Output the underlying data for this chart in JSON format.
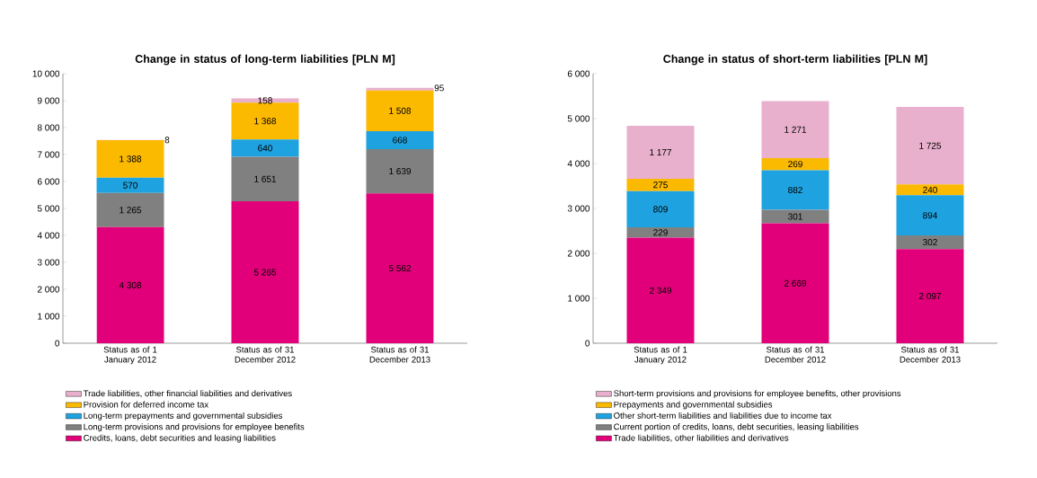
{
  "chart_data": [
    {
      "type": "bar",
      "stacked": true,
      "title": "Change in status of long-term liabilities [PLN M]",
      "categories": [
        "Status as of 1 January 2012",
        "Status as of 31 December 2012",
        "Status as of 31 December 2013"
      ],
      "ylim": [
        0,
        10000
      ],
      "yticks": [
        0,
        {
          "value": 1000,
          "label": "1 000"
        },
        {
          "value": 2000,
          "label": "2 000"
        },
        {
          "value": 3000,
          "label": "3 000"
        },
        {
          "value": 4000,
          "label": "4 000"
        },
        {
          "value": 5000,
          "label": "5 000"
        },
        {
          "value": 6000,
          "label": "6 000"
        },
        {
          "value": 7000,
          "label": "7 000"
        },
        {
          "value": 8000,
          "label": "8 000"
        },
        {
          "value": 9000,
          "label": "9 000"
        },
        {
          "value": 10000,
          "label": "10 000"
        }
      ],
      "legend": "bottom",
      "series": [
        {
          "name": "Credits, loans, debt securities and leasing liabilities",
          "color": "#e2007a",
          "values": [
            4308,
            5265,
            5562
          ],
          "value_labels": [
            "4 308",
            "5 265",
            "5 562"
          ]
        },
        {
          "name": "Long-term provisions and provisions for employee benefits",
          "color": "#808080",
          "values": [
            1265,
            1651,
            1639
          ],
          "value_labels": [
            "1 265",
            "1 651",
            "1 639"
          ]
        },
        {
          "name": "Long-term prepayments and governmental subsidies",
          "color": "#1fa3e0",
          "values": [
            570,
            640,
            668
          ],
          "value_labels": [
            "570",
            "640",
            "668"
          ]
        },
        {
          "name": "Provision for deferred income tax",
          "color": "#fbb900",
          "values": [
            1388,
            1368,
            1508
          ],
          "value_labels": [
            "1 388",
            "1 368",
            "1 508"
          ]
        },
        {
          "name": "Trade liabilities, other financial liabilities and derivatives",
          "color": "#e8b0cc",
          "values": [
            8,
            158,
            95
          ],
          "value_labels": [
            "8",
            "158",
            "95"
          ]
        }
      ]
    },
    {
      "type": "bar",
      "stacked": true,
      "title": "Change in status of short-term liabilities [PLN M]",
      "categories": [
        "Status as of 1 January 2012",
        "Status as of 31 December 2012",
        "Status as of 31 December 2013"
      ],
      "ylim": [
        0,
        6000
      ],
      "yticks": [
        0,
        {
          "value": 1000,
          "label": "1 000"
        },
        {
          "value": 2000,
          "label": "2 000"
        },
        {
          "value": 3000,
          "label": "3 000"
        },
        {
          "value": 4000,
          "label": "4 000"
        },
        {
          "value": 5000,
          "label": "5 000"
        },
        {
          "value": 6000,
          "label": "6 000"
        }
      ],
      "legend": "bottom",
      "series": [
        {
          "name": "Trade liabilities, other liabilities and derivatives",
          "color": "#e2007a",
          "values": [
            2349,
            2669,
            2097
          ],
          "value_labels": [
            "2 349",
            "2 669",
            "2 097"
          ]
        },
        {
          "name": "Current portion of credits, loans, debt securities, leasing liabilities",
          "color": "#808080",
          "values": [
            229,
            301,
            302
          ],
          "value_labels": [
            "229",
            "301",
            "302"
          ]
        },
        {
          "name": "Other short-term liabilities and liabilities due to income tax",
          "color": "#1fa3e0",
          "values": [
            809,
            882,
            894
          ],
          "value_labels": [
            "809",
            "882",
            "894"
          ]
        },
        {
          "name": "Prepayments and governmental subsidies",
          "color": "#fbb900",
          "values": [
            275,
            269,
            240
          ],
          "value_labels": [
            "275",
            "269",
            "240"
          ]
        },
        {
          "name": "Short-term provisions and provisions for employee benefits, other provisions",
          "color": "#e8b0cc",
          "values": [
            1177,
            1271,
            1725
          ],
          "value_labels": [
            "1 177",
            "1 271",
            "1 725"
          ]
        }
      ]
    }
  ]
}
